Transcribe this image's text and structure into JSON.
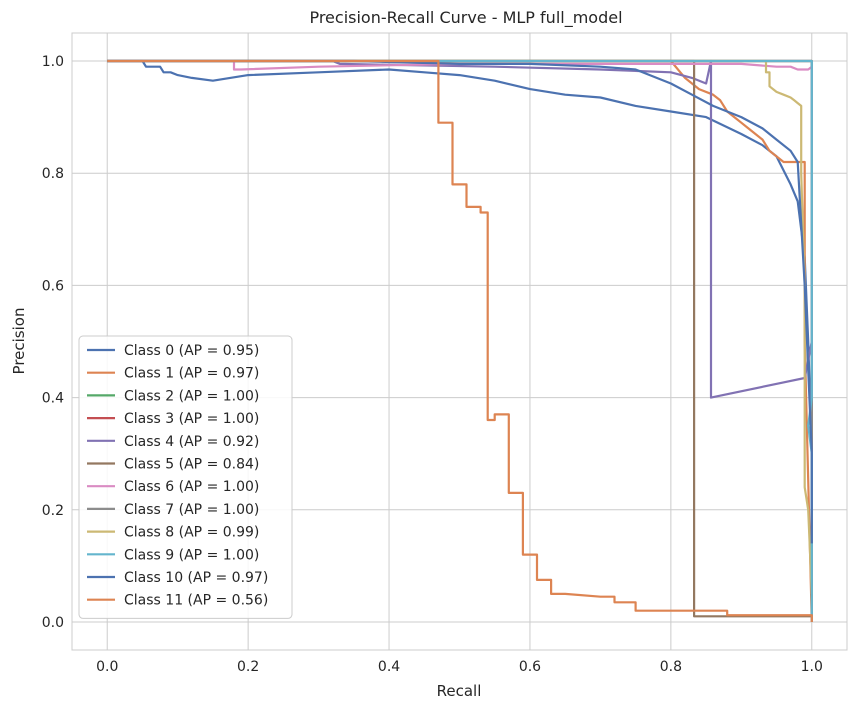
{
  "chart_data": {
    "type": "line",
    "title": "Precision-Recall Curve - MLP full_model",
    "xlabel": "Recall",
    "ylabel": "Precision",
    "xlim": [
      -0.05,
      1.05
    ],
    "ylim": [
      -0.05,
      1.05
    ],
    "xticks": [
      "0.0",
      "0.2",
      "0.4",
      "0.6",
      "0.8",
      "1.0"
    ],
    "yticks": [
      "0.0",
      "0.2",
      "0.4",
      "0.6",
      "0.8",
      "1.0"
    ],
    "xtick_values": [
      0,
      0.2,
      0.4,
      0.6,
      0.8,
      1.0
    ],
    "ytick_values": [
      0,
      0.2,
      0.4,
      0.6,
      0.8,
      1.0
    ],
    "grid": true,
    "legend_position": "lower-left",
    "series": [
      {
        "name": "Class 0 (AP = 0.95)",
        "color": "#4c72b0",
        "x": [
          0.0,
          0.05,
          0.055,
          0.075,
          0.08,
          0.09,
          0.1,
          0.12,
          0.15,
          0.2,
          0.3,
          0.4,
          0.45,
          0.5,
          0.55,
          0.6,
          0.65,
          0.7,
          0.75,
          0.8,
          0.85,
          0.9,
          0.93,
          0.95,
          0.97,
          0.98,
          0.99,
          0.995,
          1.0,
          1.0
        ],
        "y": [
          1.0,
          1.0,
          0.99,
          0.99,
          0.98,
          0.98,
          0.975,
          0.97,
          0.965,
          0.975,
          0.98,
          0.985,
          0.98,
          0.975,
          0.965,
          0.95,
          0.94,
          0.935,
          0.92,
          0.91,
          0.9,
          0.87,
          0.85,
          0.83,
          0.78,
          0.75,
          0.65,
          0.5,
          0.3,
          0.06
        ]
      },
      {
        "name": "Class 1 (AP = 0.97)",
        "color": "#dd8452",
        "x": [
          0.0,
          0.8,
          0.82,
          0.84,
          0.86,
          0.87,
          0.88,
          0.89,
          0.9,
          0.91,
          0.93,
          0.94,
          0.96,
          0.97,
          0.98,
          0.99,
          0.99,
          1.0
        ],
        "y": [
          1.0,
          1.0,
          0.97,
          0.95,
          0.94,
          0.93,
          0.91,
          0.9,
          0.89,
          0.88,
          0.86,
          0.84,
          0.82,
          0.82,
          0.82,
          0.82,
          0.5,
          0.0
        ]
      },
      {
        "name": "Class 2 (AP = 1.00)",
        "color": "#55a868",
        "x": [
          0.0,
          1.0,
          1.0
        ],
        "y": [
          1.0,
          1.0,
          0.05
        ]
      },
      {
        "name": "Class 3 (AP = 1.00)",
        "color": "#c44e52",
        "x": [
          0.0,
          1.0,
          1.0
        ],
        "y": [
          1.0,
          1.0,
          0.05
        ]
      },
      {
        "name": "Class 4 (AP = 0.92)",
        "color": "#8172b3",
        "x": [
          0.0,
          0.32,
          0.33,
          0.55,
          0.7,
          0.8,
          0.83,
          0.85,
          0.857,
          0.857,
          0.99,
          1.0,
          1.0
        ],
        "y": [
          1.0,
          1.0,
          0.995,
          0.99,
          0.985,
          0.98,
          0.97,
          0.96,
          1.0,
          0.4,
          0.435,
          0.5,
          0.06
        ]
      },
      {
        "name": "Class 5 (AP = 0.84)",
        "color": "#937860",
        "x": [
          0.0,
          0.833,
          0.833,
          1.0,
          1.0
        ],
        "y": [
          1.0,
          1.0,
          0.01,
          0.01,
          1.0
        ]
      },
      {
        "name": "Class 6 (AP = 1.00)",
        "color": "#da8bc3",
        "x": [
          0.0,
          0.18,
          0.18,
          0.19,
          0.3,
          0.5,
          0.7,
          0.9,
          0.95,
          0.96,
          0.97,
          0.98,
          0.99,
          0.995,
          1.0,
          1.0
        ],
        "y": [
          1.0,
          1.0,
          0.985,
          0.985,
          0.99,
          0.995,
          0.995,
          0.995,
          0.99,
          0.99,
          0.99,
          0.985,
          0.985,
          0.985,
          0.99,
          0.4
        ]
      },
      {
        "name": "Class 7 (AP = 1.00)",
        "color": "#8c8c8c",
        "x": [
          0.0,
          1.0,
          1.0
        ],
        "y": [
          1.0,
          1.0,
          0.05
        ]
      },
      {
        "name": "Class 8 (AP = 0.99)",
        "color": "#ccb974",
        "x": [
          0.0,
          0.935,
          0.935,
          0.94,
          0.94,
          0.95,
          0.96,
          0.97,
          0.975,
          0.98,
          0.985,
          0.985,
          0.99,
          0.99,
          0.995,
          1.0
        ],
        "y": [
          1.0,
          1.0,
          0.98,
          0.98,
          0.955,
          0.945,
          0.94,
          0.935,
          0.93,
          0.925,
          0.92,
          0.8,
          0.6,
          0.24,
          0.2,
          0.05
        ]
      },
      {
        "name": "Class 9 (AP = 1.00)",
        "color": "#64b5cd",
        "x": [
          0.0,
          1.0,
          1.0,
          0.995,
          1.0,
          1.0
        ],
        "y": [
          1.0,
          1.0,
          0.4,
          0.35,
          0.3,
          0.0
        ]
      },
      {
        "name": "Class 10 (AP = 0.97)",
        "color": "#4c72b0",
        "x": [
          0.0,
          0.35,
          0.5,
          0.6,
          0.7,
          0.75,
          0.8,
          0.83,
          0.86,
          0.9,
          0.93,
          0.95,
          0.97,
          0.98,
          0.99,
          0.995,
          1.0,
          1.0
        ],
        "y": [
          1.0,
          1.0,
          0.995,
          0.995,
          0.99,
          0.985,
          0.96,
          0.94,
          0.92,
          0.9,
          0.88,
          0.86,
          0.84,
          0.82,
          0.6,
          0.45,
          0.3,
          0.14
        ]
      },
      {
        "name": "Class 11 (AP = 0.56)",
        "color": "#dd8452",
        "x": [
          0.0,
          0.47,
          0.47,
          0.49,
          0.49,
          0.51,
          0.51,
          0.53,
          0.53,
          0.54,
          0.54,
          0.55,
          0.55,
          0.57,
          0.57,
          0.59,
          0.59,
          0.61,
          0.61,
          0.63,
          0.63,
          0.65,
          0.7,
          0.72,
          0.72,
          0.75,
          0.75,
          0.78,
          0.85,
          0.88,
          0.88,
          1.0,
          1.0
        ],
        "y": [
          1.0,
          1.0,
          0.89,
          0.89,
          0.78,
          0.78,
          0.74,
          0.74,
          0.73,
          0.73,
          0.36,
          0.36,
          0.37,
          0.37,
          0.23,
          0.23,
          0.12,
          0.12,
          0.075,
          0.075,
          0.05,
          0.05,
          0.045,
          0.045,
          0.035,
          0.035,
          0.02,
          0.02,
          0.02,
          0.02,
          0.012,
          0.012,
          0.0
        ]
      }
    ]
  }
}
